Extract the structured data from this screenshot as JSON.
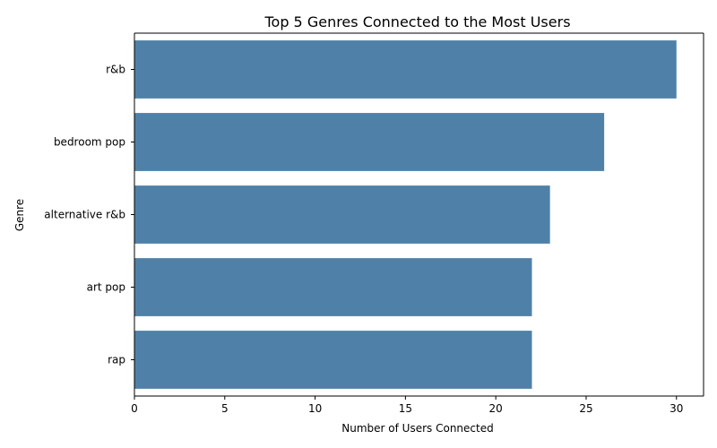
{
  "chart_data": {
    "type": "bar",
    "orientation": "horizontal",
    "title": "Top 5 Genres Connected to the Most Users",
    "xlabel": "Number of Users Connected",
    "ylabel": "Genre",
    "categories": [
      "r&b",
      "bedroom pop",
      "alternative r&b",
      "art pop",
      "rap"
    ],
    "values": [
      30,
      26,
      23,
      22,
      22
    ],
    "xlim": [
      0,
      31.5
    ],
    "xticks": [
      0,
      5,
      10,
      15,
      20,
      25,
      30
    ],
    "bar_color": "#4f81a8",
    "grid": false,
    "legend": "none"
  }
}
